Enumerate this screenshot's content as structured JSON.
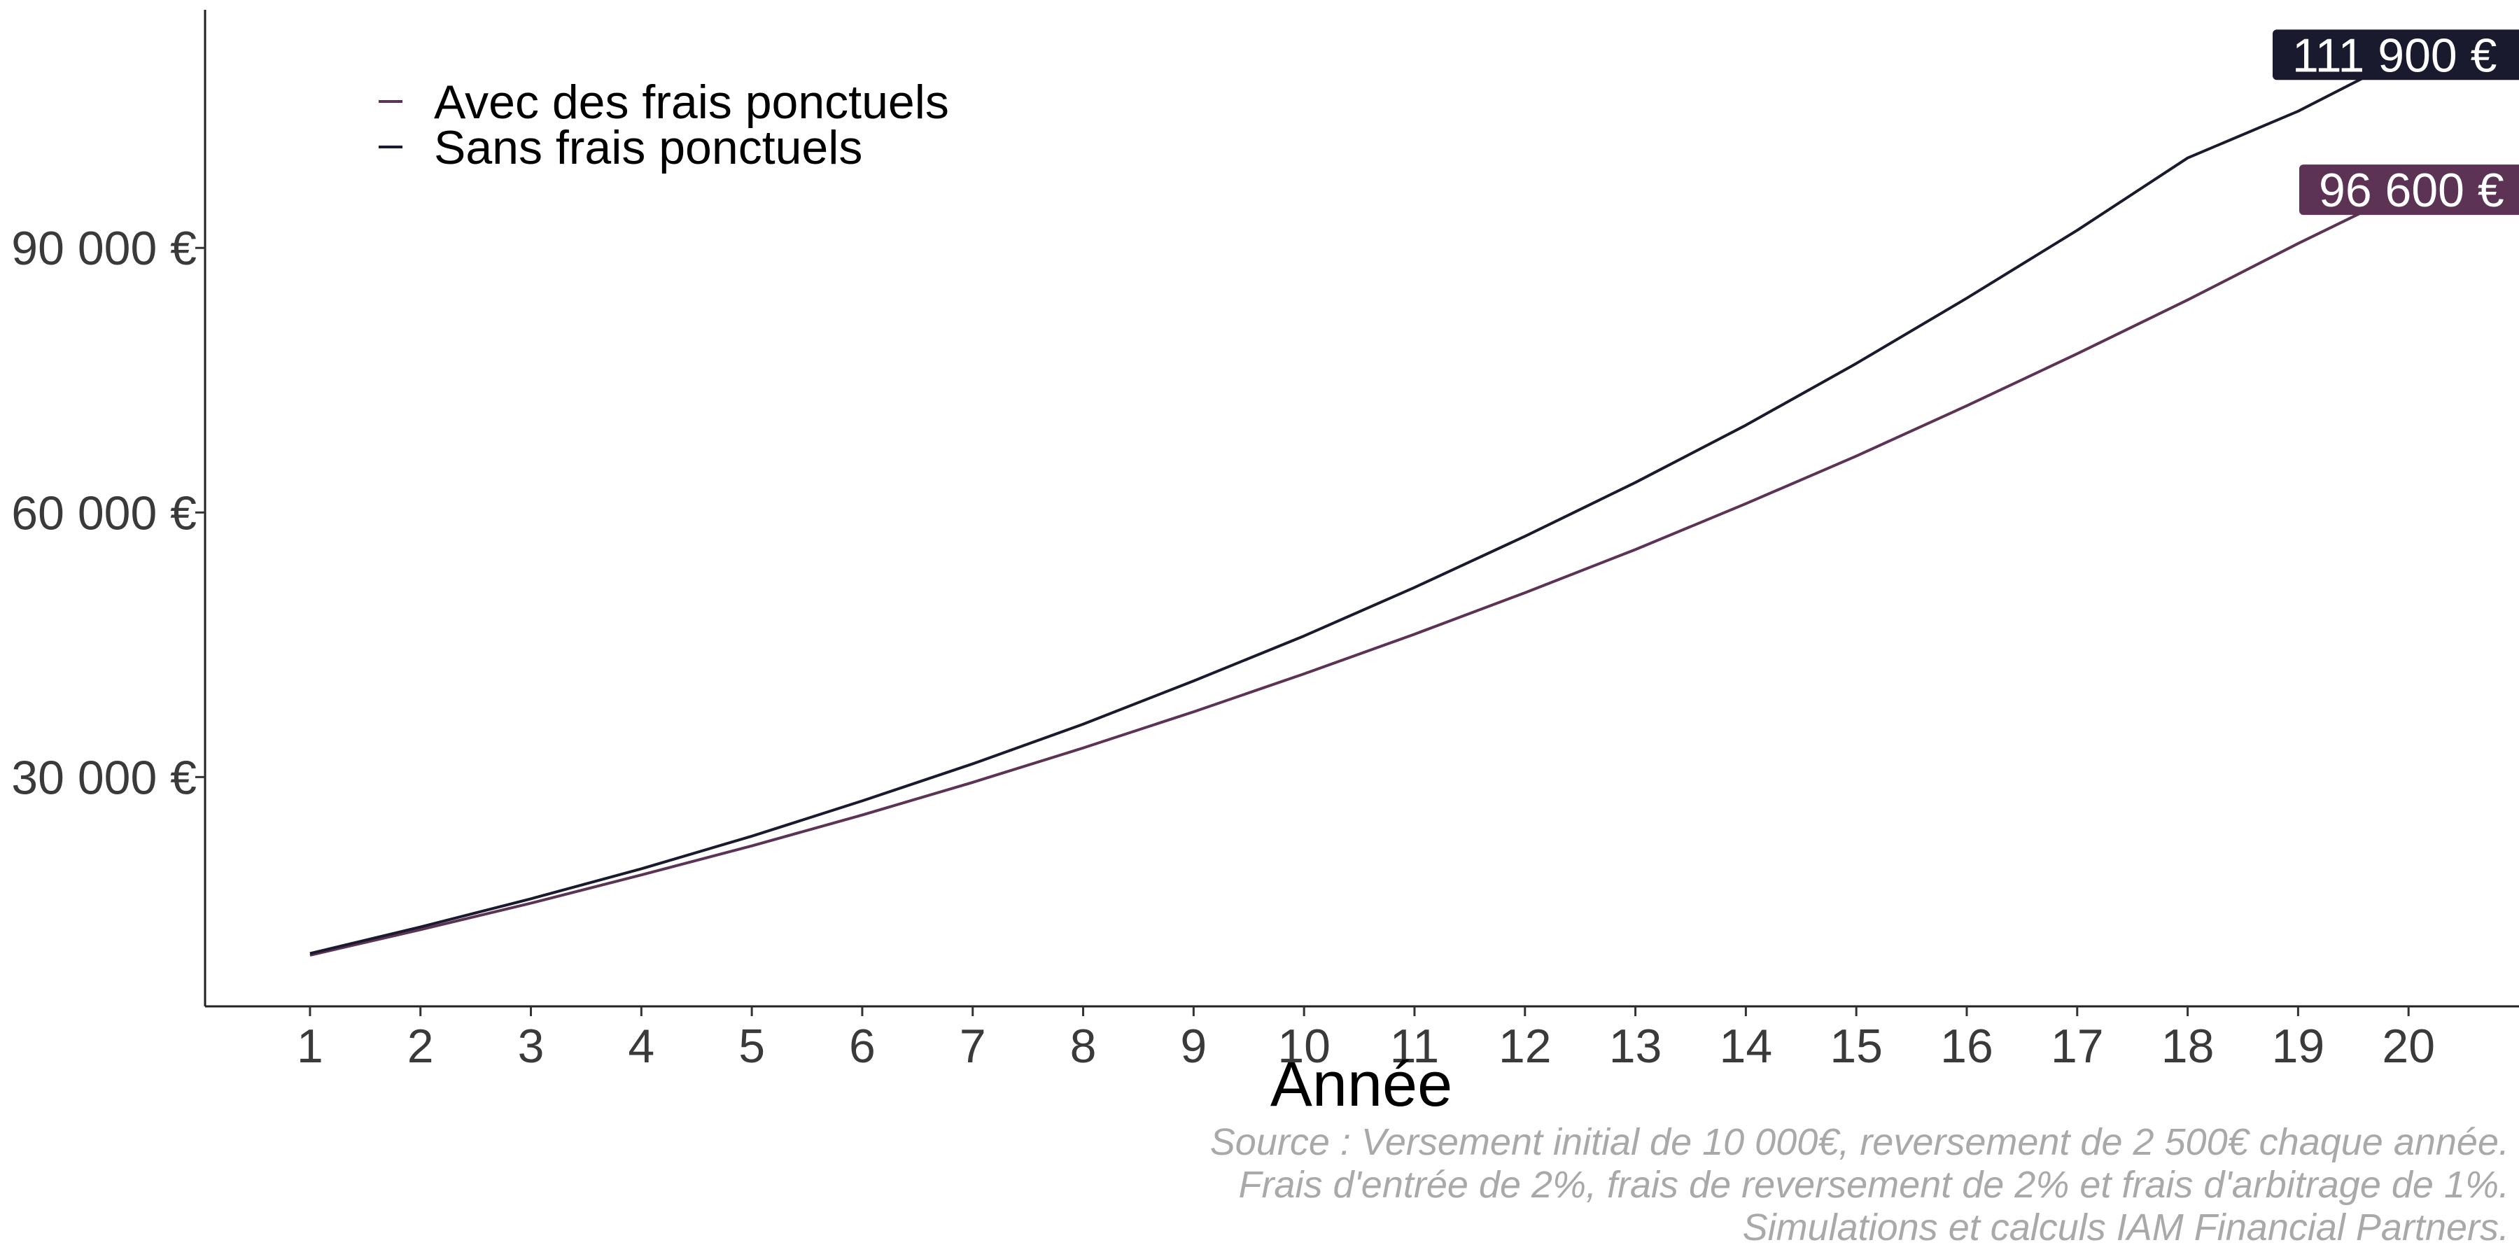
{
  "chart_data": {
    "type": "line",
    "xlabel": "Année",
    "ylabel": "",
    "x": [
      1,
      2,
      3,
      4,
      5,
      6,
      7,
      8,
      9,
      10,
      11,
      12,
      13,
      14,
      15,
      16,
      17,
      18,
      19,
      20
    ],
    "y_ticks": [
      30000,
      60000,
      90000
    ],
    "y_tick_labels": [
      "30 000 €",
      "60 000 €",
      "90 000 €"
    ],
    "ylim": [
      4000,
      117000
    ],
    "xlim": [
      0.05,
      21.0
    ],
    "grid": false,
    "legend_position": "top-left",
    "series": [
      {
        "name": "Avec des frais ponctuels",
        "color": "#5c3354",
        "values": [
          9800,
          12700,
          15700,
          18900,
          22200,
          25700,
          29400,
          33300,
          37400,
          41700,
          46200,
          50900,
          55800,
          61000,
          66400,
          72100,
          78000,
          84100,
          90500,
          96600
        ],
        "end_label": "96 600 €"
      },
      {
        "name": "Sans frais ponctuels",
        "color": "#1a1a2e",
        "values": [
          10000,
          13000,
          16200,
          19600,
          23300,
          27300,
          31500,
          36000,
          40900,
          46000,
          51500,
          57300,
          63400,
          69900,
          76900,
          84300,
          92000,
          100200,
          105500,
          111900
        ],
        "end_label": "111 900 €"
      }
    ]
  },
  "caption_lines": [
    "Source : Versement initial de 10 000€, reversement de 2 500€ chaque année.",
    "Frais d'entrée de 2%, frais de reversement de 2% et frais d'arbitrage de 1%.",
    "Simulations et calculs IAM Financial Partners."
  ]
}
